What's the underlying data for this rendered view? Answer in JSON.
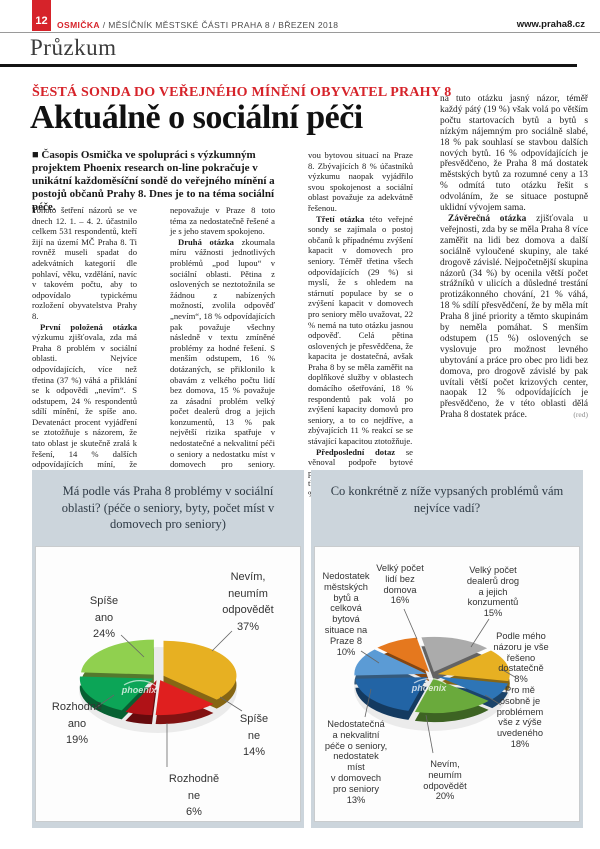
{
  "header": {
    "page_number": "12",
    "magazine": "OSMIČKA",
    "subtitle": " / MĚSÍČNÍK MĚSTSKÉ ČÁSTI PRAHA 8 / BŘEZEN 2018",
    "website": "www.praha8.cz",
    "section": "Průzkum"
  },
  "article": {
    "kicker": "ŠESTÁ SONDA DO VEŘEJNÉHO MÍNĚNÍ OBYVATEL PRAHY 8",
    "title": "Aktuálně o sociální péči",
    "lead_bullet": "■ ",
    "lead": "Časopis Osmička ve spolupráci s výzkumným projektem Phoenix research on-line pokračuje v unikátní každoměsíční sondě do veřejného mínění a postojů občanů Prahy 8. Dnes je to na téma sociální péče.",
    "signature": "(red)",
    "columns": [
      [
        {
          "text": "Tohoto šetření názorů se ve dnech 12. 1. – 4. 2. účastnilo celkem 531 respondentů, kteří žijí na území MČ Praha 8. Ti rovněž museli spadat do adekvátních kategorií dle pohlaví, věku, vzdělání, navíc v takovém počtu, aby to odpovídalo typickému rozložení obyvatelstva Prahy 8."
        },
        {
          "bold": "První položená otázka",
          "text": " výzkumu zjišťovala, zda má Praha 8 problém v sociální oblasti. Nejvíce odpovídajících, více než třetina (37 %) váhá a přiklání se k odpovědi „nevím“. S odstupem, 24 % respondentů sdílí mínění, že spíše ano. Devatenáct procent vyjádření se ztotožňuje s názorem, že tato oblast je skutečně zralá k řešení, 14 % dalších odpovídajících míní, že sociální problémy na osmičce spíše nejsou, a zbývajících 6 % dotázaných vůbec"
        }
      ],
      [
        {
          "text": "nepovažuje v Praze 8 toto téma za nedostatečně řešené a je s jeho stavem spokojeno."
        },
        {
          "bold": "Druhá otázka",
          "text": " zkoumala míru vážnosti jednotlivých problémů „pod lupou“ v sociální oblasti. Pětina z oslovených se neztotožnila se žádnou z nabízených možností, zvolila odpověď „nevím“, 18 % odpovídajících pak považuje všechny následně v textu zmíněné problémy za hodné řešení. S menším odstupem, 16 % dotázaných, se přiklonilo k obavám z velkého počtu lidí bez domova, 15 % považuje za zásadní problém velký počet dealerů drog a jejich konzumentů, 13 % pak největší rizika spatřuje v nedostatečné a nekvalitní péči o seniory a nedostatku míst v domovech pro seniory. Desetina dotázaných je nespokojena s nedostatkem městských bytů a s celko-"
        }
      ],
      [
        {
          "text": "vou bytovou situací na Praze 8. Zbývajících 8 % účastníků výzkumu naopak vyjádřilo svou spokojenost a sociální oblast považuje za adekvátně řešenou."
        },
        {
          "bold": "Třetí otázka",
          "text": " této veřejné sondy se zajímala o postoj občanů k případnému zvýšení kapacit v domovech pro seniory. Téměř třetina všech odpovídajících (29 %) si myslí, že s ohledem na stárnutí populace by se o zvýšení kapacit v domovech pro seniory mělo uvažovat, 22 % nemá na tuto otázku jasnou odpověď. Celá pětina oslovených je přesvědčena, že kapacita je dostatečná, avšak Praha 8 by se měla zaměřit na doplňkové služby v oblastech domácího ošetřování, 18 % respondentů pak volá po zvýšení kapacity domovů pro seniory, a to co nejdříve, a zbývajících 11 % reakcí se se stávající kapacitou ztotožňuje."
        },
        {
          "bold": "Předposlední dotaz",
          "text": " se věnoval podpoře bytové politiky v Praze 8. Více než třetina účastníků výzkumu (34 %) nemá"
        }
      ],
      [
        {
          "text": "na tuto otázku jasný názor, téměř každý pátý (19 %) však volá po větším počtu startovacích bytů a bytů s nízkým nájemným pro sociálně slabé, 18 % pak souhlasí se stavbou dalších nových bytů. 16 % odpovídajících je přesvědčeno, že Praha 8 má dostatek městských bytů za rozumné ceny a 13 % odmítá tuto otázku řešit s odvoláním, že se situace postupně uklidní vývojem sama."
        },
        {
          "bold": "Závěrečná otázka",
          "text": " zjišťovala u veřejnosti, zda by se měla Praha 8 více zaměřit na lidi bez domova a další sociálně vyloučené skupiny, ale také drogově závislé. Nejpočetnější skupina názorů (34 %) by ocenila větší počet strážníků v ulicích a důsledné trestání protizákonného chování, 21 % váhá, 18 % sdílí přesvědčení, že by měla mít Praha 8 jiné priority a těmto skupinám by neměla pomáhat. S menším odstupem (15 %) oslovených se vyslovuje pro možnost levného ubytování a práce pro obec pro lidi bez domova, pro drogově závislé by pak uvítali větší počet krizových center, naopak 12 % odpovídajících je přesvědčeno, že v této oblasti dělá Praha 8 dostatek práce.",
          "sig": true
        }
      ]
    ]
  },
  "chart_data": [
    {
      "type": "pie",
      "title": "Má podle vás Praha 8 problémy v sociální oblasti? (péče o seniory, byty, počet míst v domovech pro seniory)",
      "watermark": "phoenix",
      "slices": [
        {
          "label": "Nevím, neumím odpovědět",
          "display": "Nevím,\nneumím\nodpovědět",
          "value": 37,
          "color": "#e7b022"
        },
        {
          "label": "Spíše ne",
          "display": "Spíše\nne",
          "value": 14,
          "color": "#e01f1f"
        },
        {
          "label": "Rozhodně ne",
          "display": "Rozhodně\nne",
          "value": 6,
          "color": "#b01217"
        },
        {
          "label": "Rozhodně ano",
          "display": "Rozhodně\nano",
          "value": 19,
          "color": "#0ca557"
        },
        {
          "label": "Spíše ano",
          "display": "Spíše\nano",
          "value": 24,
          "color": "#90d04f"
        }
      ]
    },
    {
      "type": "pie",
      "title": "Co konkrétně z níže vypsaných problémů vám nejvíce vadí?",
      "watermark": "phoenix",
      "slices": [
        {
          "label": "Velký počet lidí bez domova",
          "display": "Velký počet\nlidí bez\ndomova",
          "value": 16,
          "color": "#ababab"
        },
        {
          "label": "Velký počet dealerů drog a jejich konzumentů",
          "display": "Velký počet\ndealerů drog\na jejich\nkonzumentů",
          "value": 15,
          "color": "#e7b022"
        },
        {
          "label": "Podle mého názoru je vše řešeno dostatečně",
          "display": "Podle mého\nnázoru je vše\nřešeno\ndostatečně",
          "value": 8,
          "color": "#2e75b6"
        },
        {
          "label": "Pro mě osobně je problémem vše z výše uvedeného",
          "display": "Pro mě\nosobně je\nproblémem\nvše z výše\nuvedeného",
          "value": 18,
          "color": "#6aaa3c"
        },
        {
          "label": "Nevím, neumím odpovědět",
          "display": "Nevím,\nneumím\nodpovědět",
          "value": 20,
          "color": "#2264a5"
        },
        {
          "label": "Nedostatečná a nekvalitní péče o seniory, nedostatek míst v domovech pro seniory",
          "display": "Nedostatečná\na nekvalitní\npéče o seniory,\nnedostatek\nmíst\nv domovech\npro seniory",
          "value": 13,
          "color": "#5b9bd5"
        },
        {
          "label": "Nedostatek městských bytů a celková bytová situace na Praze 8",
          "display": "Nedostatek\nměstských\nbytů a\ncelková\nbytová\nsituace na\nPraze 8",
          "value": 10,
          "color": "#e5781e"
        }
      ]
    }
  ]
}
